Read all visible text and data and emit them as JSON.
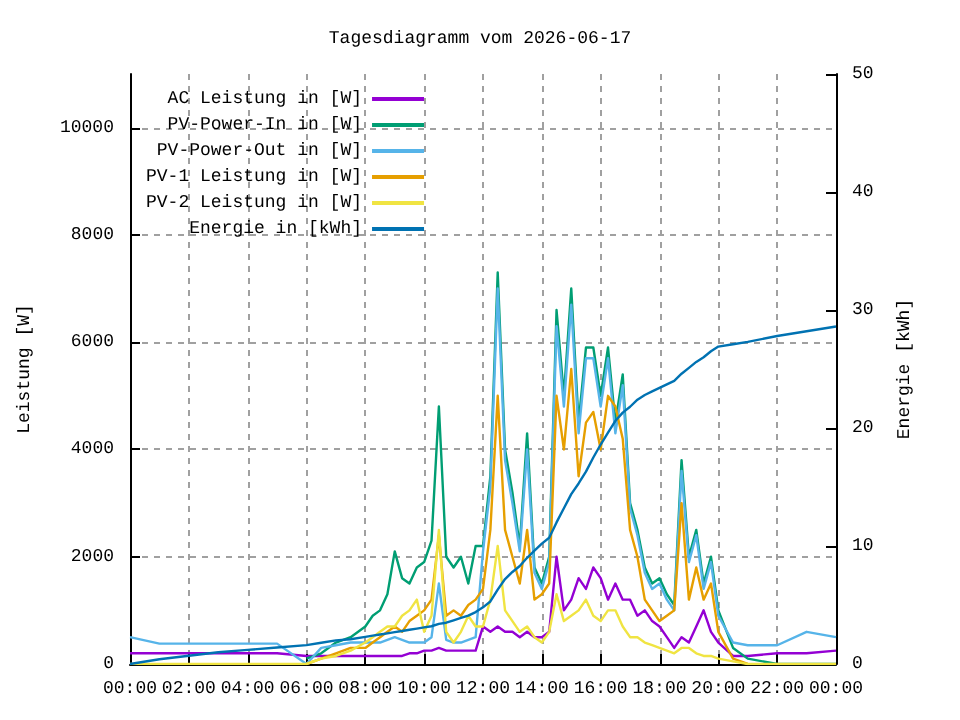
{
  "chart_data": {
    "type": "line",
    "title": "Tagesdiagramm vom 2026-06-17",
    "xlabel": null,
    "ylabel": "Leistung [W]",
    "y2label": "Energie [kWh]",
    "x": [
      0,
      1,
      2,
      3,
      4,
      5,
      6,
      6.5,
      7,
      7.5,
      8,
      8.25,
      8.5,
      8.75,
      9,
      9.25,
      9.5,
      9.75,
      10,
      10.25,
      10.5,
      10.75,
      11,
      11.25,
      11.5,
      11.75,
      12,
      12.25,
      12.5,
      12.75,
      13,
      13.25,
      13.5,
      13.75,
      14,
      14.25,
      14.5,
      14.75,
      15,
      15.25,
      15.5,
      15.75,
      16,
      16.25,
      16.5,
      16.75,
      17,
      17.25,
      17.5,
      17.75,
      18,
      18.25,
      18.5,
      18.75,
      19,
      19.25,
      19.5,
      19.75,
      20,
      20.5,
      21,
      22,
      23,
      24
    ],
    "series": [
      {
        "name": "AC Leistung in [W]",
        "color": "#9400d3",
        "values": [
          200,
          200,
          200,
          200,
          200,
          200,
          150,
          150,
          150,
          150,
          150,
          150,
          150,
          150,
          150,
          150,
          200,
          200,
          250,
          250,
          300,
          250,
          250,
          250,
          250,
          250,
          700,
          600,
          700,
          600,
          600,
          500,
          600,
          500,
          500,
          600,
          2000,
          1000,
          1200,
          1600,
          1400,
          1800,
          1600,
          1200,
          1500,
          1200,
          1200,
          900,
          1000,
          800,
          700,
          500,
          300,
          500,
          400,
          700,
          1000,
          600,
          400,
          150,
          150,
          200,
          200,
          250
        ]
      },
      {
        "name": "PV-Power-In in [W]",
        "color": "#009e73",
        "values": [
          null,
          null,
          null,
          null,
          null,
          null,
          100,
          200,
          400,
          500,
          700,
          900,
          1000,
          1300,
          2100,
          1600,
          1500,
          1800,
          1900,
          2300,
          4800,
          2000,
          1800,
          2000,
          1500,
          2200,
          2200,
          3500,
          7300,
          4000,
          3200,
          2200,
          4300,
          1800,
          1500,
          2000,
          6600,
          5000,
          7000,
          4500,
          5900,
          5900,
          5000,
          5900,
          4500,
          5400,
          3000,
          2500,
          1800,
          1500,
          1600,
          1300,
          1100,
          3800,
          2000,
          2500,
          1500,
          2000,
          1000,
          300,
          100,
          0,
          0,
          0
        ]
      },
      {
        "name": "PV-Power-Out in [W]",
        "color": "#56b4e9",
        "values": [
          500,
          380,
          380,
          380,
          380,
          380,
          0,
          300,
          350,
          400,
          400,
          400,
          400,
          450,
          500,
          450,
          400,
          400,
          400,
          500,
          1500,
          450,
          400,
          400,
          450,
          500,
          2100,
          3300,
          7000,
          3800,
          3000,
          2100,
          4000,
          1700,
          1400,
          1900,
          6300,
          4800,
          6700,
          4300,
          5700,
          5700,
          4800,
          5700,
          4300,
          5200,
          2900,
          2400,
          1700,
          1400,
          1500,
          1200,
          1000,
          3600,
          1900,
          2400,
          1400,
          1900,
          900,
          400,
          350,
          350,
          600,
          500
        ]
      },
      {
        "name": "PV-1 Leistung in [W]",
        "color": "#e69f00",
        "values": [
          null,
          null,
          null,
          null,
          null,
          null,
          0,
          100,
          200,
          300,
          300,
          400,
          500,
          600,
          700,
          600,
          800,
          900,
          1000,
          1200,
          2400,
          900,
          1000,
          900,
          1100,
          1200,
          1400,
          2500,
          5000,
          2500,
          2000,
          1500,
          2500,
          1200,
          1300,
          1500,
          5000,
          4000,
          5500,
          3500,
          4500,
          4700,
          4000,
          5000,
          4800,
          4200,
          2500,
          2000,
          1200,
          1000,
          800,
          900,
          1000,
          3000,
          1200,
          1800,
          1200,
          1500,
          600,
          100,
          0,
          null,
          null,
          null
        ]
      },
      {
        "name": "PV-2 Leistung in [W]",
        "color": "#f0e442",
        "values": [
          0,
          0,
          0,
          0,
          0,
          0,
          0,
          100,
          150,
          250,
          400,
          500,
          600,
          700,
          700,
          900,
          1000,
          1200,
          600,
          900,
          2500,
          600,
          400,
          600,
          900,
          700,
          700,
          1200,
          2200,
          1000,
          800,
          600,
          700,
          500,
          400,
          600,
          1300,
          800,
          900,
          1000,
          1200,
          900,
          800,
          1000,
          1000,
          700,
          500,
          500,
          400,
          350,
          300,
          250,
          200,
          300,
          300,
          200,
          150,
          150,
          100,
          50,
          0,
          0,
          0,
          0
        ]
      },
      {
        "name": "Energie in [kWh]",
        "color": "#0072b2",
        "axis": "y2",
        "values": [
          0,
          0.4,
          0.7,
          1.0,
          1.2,
          1.4,
          1.6,
          1.8,
          2.0,
          2.1,
          2.3,
          2.4,
          2.5,
          2.6,
          2.7,
          2.8,
          2.9,
          3.0,
          3.1,
          3.2,
          3.4,
          3.5,
          3.7,
          3.9,
          4.1,
          4.4,
          4.8,
          5.3,
          6.3,
          7.2,
          7.8,
          8.3,
          9.0,
          9.6,
          10.2,
          10.7,
          12.0,
          13.2,
          14.4,
          15.3,
          16.3,
          17.5,
          18.6,
          19.6,
          20.6,
          21.3,
          21.8,
          22.4,
          22.8,
          23.1,
          23.4,
          23.7,
          24.0,
          24.6,
          25.1,
          25.6,
          26.0,
          26.5,
          26.9,
          27.1,
          27.3,
          27.8,
          28.2,
          28.6
        ]
      }
    ],
    "xlim": [
      0,
      24
    ],
    "xticks": [
      {
        "value": 0,
        "label": "00:00"
      },
      {
        "value": 2,
        "label": "02:00"
      },
      {
        "value": 4,
        "label": "04:00"
      },
      {
        "value": 6,
        "label": "06:00"
      },
      {
        "value": 8,
        "label": "08:00"
      },
      {
        "value": 10,
        "label": "10:00"
      },
      {
        "value": 12,
        "label": "12:00"
      },
      {
        "value": 14,
        "label": "14:00"
      },
      {
        "value": 16,
        "label": "16:00"
      },
      {
        "value": 18,
        "label": "18:00"
      },
      {
        "value": 20,
        "label": "20:00"
      },
      {
        "value": 22,
        "label": "22:00"
      },
      {
        "value": 24,
        "label": "00:00"
      }
    ],
    "ylim": [
      0,
      11000
    ],
    "yticks": [
      0,
      2000,
      4000,
      6000,
      8000,
      10000
    ],
    "y2lim": [
      0,
      50
    ],
    "y2ticks": [
      0,
      10,
      20,
      30,
      40,
      50
    ],
    "grid": true,
    "legend": "top left",
    "marker": "none",
    "line_style": "solid"
  }
}
